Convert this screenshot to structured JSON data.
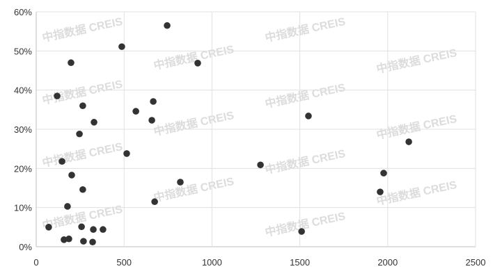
{
  "chart_data": {
    "type": "scatter",
    "title": "",
    "xlabel": "",
    "ylabel": "",
    "xlim": [
      0,
      2500
    ],
    "ylim": [
      0,
      60
    ],
    "x_ticks": [
      "0",
      "500",
      "1000",
      "1500",
      "2000",
      "2500"
    ],
    "y_ticks": [
      "0%",
      "10%",
      "20%",
      "30%",
      "40%",
      "50%",
      "60%"
    ],
    "grid": true,
    "marker_color": "#333333",
    "watermark": "中指数据 CREIS",
    "points": [
      [
        71,
        5.0
      ],
      [
        119,
        38.5
      ],
      [
        147,
        21.8
      ],
      [
        178,
        10.3
      ],
      [
        158,
        1.8
      ],
      [
        186,
        2.0
      ],
      [
        198,
        47.0
      ],
      [
        202,
        18.3
      ],
      [
        246,
        28.8
      ],
      [
        258,
        5.1
      ],
      [
        265,
        36.0
      ],
      [
        269,
        1.4
      ],
      [
        265,
        14.6
      ],
      [
        329,
        31.8
      ],
      [
        325,
        4.4
      ],
      [
        380,
        4.4
      ],
      [
        321,
        1.2
      ],
      [
        487,
        51.1
      ],
      [
        515,
        23.8
      ],
      [
        567,
        34.6
      ],
      [
        658,
        32.3
      ],
      [
        666,
        37.1
      ],
      [
        674,
        11.5
      ],
      [
        745,
        56.5
      ],
      [
        820,
        16.5
      ],
      [
        919,
        46.9
      ],
      [
        1276,
        20.9
      ],
      [
        1510,
        3.9
      ],
      [
        1549,
        33.4
      ],
      [
        1957,
        14.0
      ],
      [
        1977,
        18.8
      ],
      [
        2120,
        26.8
      ]
    ]
  }
}
